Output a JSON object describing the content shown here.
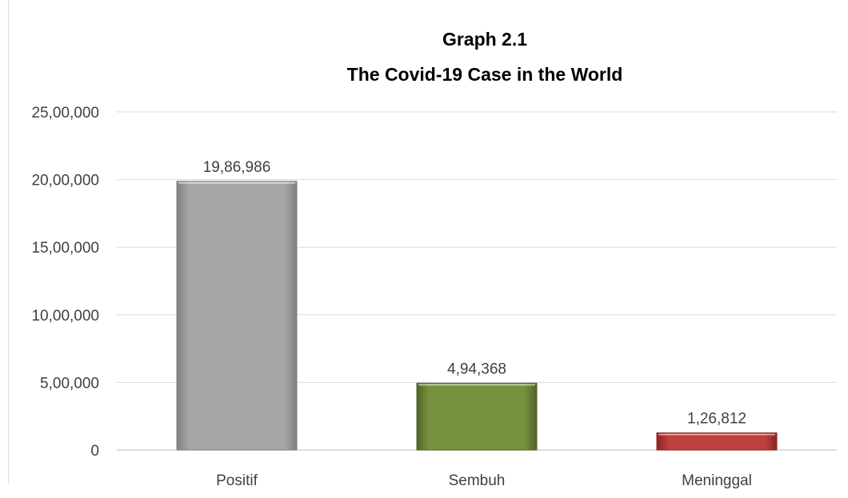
{
  "chart_data": {
    "type": "bar",
    "title": "Graph 2.1",
    "subtitle": "The Covid-19 Case in the World",
    "categories": [
      "Positif",
      "Sembuh",
      "Meninggal"
    ],
    "values": [
      1986986,
      494368,
      126812
    ],
    "data_labels": [
      "19,86,986",
      "4,94,368",
      "1,26,812"
    ],
    "y_ticks": [
      0,
      500000,
      1000000,
      1500000,
      2000000,
      2500000
    ],
    "y_tick_labels": [
      "0",
      "5,00,000",
      "10,00,000",
      "15,00,000",
      "20,00,000",
      "25,00,000"
    ],
    "ylim": [
      0,
      2500000
    ],
    "grid": true,
    "legend": "none",
    "colors": [
      "#a6a6a6",
      "#76923c",
      "#c0403f"
    ],
    "edge_colors": [
      "#7f7f7f",
      "#4f6228",
      "#8b2423"
    ]
  }
}
